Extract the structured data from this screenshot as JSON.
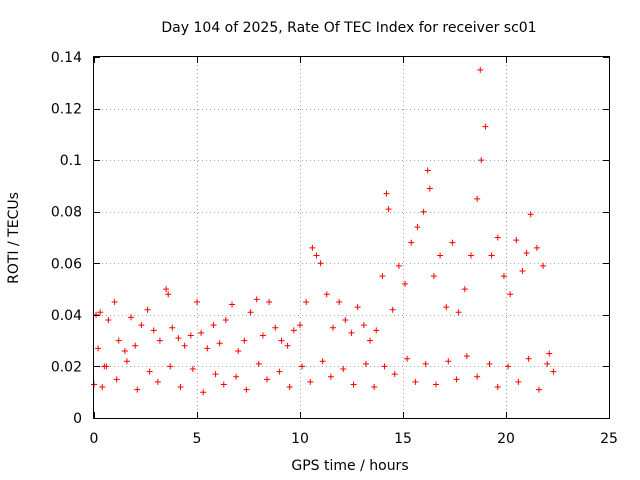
{
  "chart_data": {
    "type": "scatter",
    "title": "Day 104 of 2025, Rate Of TEC Index for receiver sc01",
    "xlabel": "GPS time / hours",
    "ylabel": "ROTI / TECUs",
    "xlim": [
      0,
      25
    ],
    "ylim": [
      0,
      0.14
    ],
    "xticks": [
      0,
      5,
      10,
      15,
      20,
      25
    ],
    "xtick_labels": [
      "0",
      "5",
      "10",
      "15",
      "20",
      "25"
    ],
    "yticks": [
      0,
      0.02,
      0.04,
      0.06,
      0.08,
      0.1,
      0.12,
      0.14
    ],
    "ytick_labels": [
      "0",
      "0.02",
      "0.04",
      "0.06",
      "0.08",
      "0.1",
      "0.12",
      "0.14"
    ],
    "grid": true,
    "marker": "+",
    "color": "#ff0000",
    "series": [
      {
        "x": [
          0.0,
          0.1,
          0.2,
          0.3,
          0.5,
          0.7,
          1.0,
          1.2,
          1.5,
          1.8,
          2.0,
          2.3,
          2.6,
          2.9,
          3.2,
          3.5,
          3.6,
          3.8,
          4.1,
          4.4,
          4.7,
          5.0,
          5.2,
          5.5,
          5.8,
          6.1,
          6.4,
          6.7,
          7.0,
          7.3,
          7.6,
          7.9,
          8.2,
          8.5,
          8.8,
          9.1,
          9.4,
          9.7,
          10.0,
          10.3,
          10.6,
          10.8,
          11.0,
          11.3,
          11.6,
          11.9,
          12.2,
          12.5,
          12.8,
          13.1,
          13.4,
          13.7,
          14.0,
          14.2,
          14.3,
          14.5,
          14.8,
          15.1,
          15.4,
          15.7,
          16.0,
          16.2,
          16.3,
          16.5,
          16.8,
          17.1,
          17.4,
          17.7,
          18.0,
          18.3,
          18.6,
          18.75,
          18.8,
          19.0,
          19.3,
          19.6,
          19.9,
          20.2,
          20.5,
          20.8,
          21.0,
          21.2,
          21.5,
          21.8,
          22.1,
          22.3,
          0.4,
          1.1,
          2.1,
          3.1,
          4.2,
          5.3,
          6.3,
          7.4,
          8.4,
          9.5,
          10.5,
          11.5,
          12.6,
          13.6,
          14.6,
          15.6,
          16.6,
          17.6,
          18.6,
          19.6,
          20.6,
          21.6,
          0.6,
          1.6,
          2.7,
          3.7,
          4.8,
          5.9,
          6.9,
          8.0,
          9.0,
          10.1,
          11.1,
          12.1,
          13.2,
          14.1,
          15.2,
          16.1,
          17.2,
          18.1,
          19.2,
          20.1,
          21.1,
          22.0
        ],
        "y": [
          0.013,
          0.04,
          0.027,
          0.041,
          0.02,
          0.038,
          0.045,
          0.03,
          0.026,
          0.039,
          0.028,
          0.036,
          0.042,
          0.034,
          0.03,
          0.05,
          0.048,
          0.035,
          0.031,
          0.028,
          0.032,
          0.045,
          0.033,
          0.027,
          0.036,
          0.029,
          0.038,
          0.044,
          0.026,
          0.03,
          0.041,
          0.046,
          0.032,
          0.045,
          0.035,
          0.03,
          0.028,
          0.034,
          0.036,
          0.045,
          0.066,
          0.063,
          0.06,
          0.048,
          0.035,
          0.045,
          0.038,
          0.033,
          0.043,
          0.036,
          0.03,
          0.034,
          0.055,
          0.087,
          0.081,
          0.042,
          0.059,
          0.052,
          0.068,
          0.074,
          0.08,
          0.096,
          0.089,
          0.055,
          0.063,
          0.043,
          0.068,
          0.041,
          0.05,
          0.063,
          0.085,
          0.135,
          0.1,
          0.113,
          0.063,
          0.07,
          0.055,
          0.048,
          0.069,
          0.057,
          0.064,
          0.079,
          0.066,
          0.059,
          0.025,
          0.018,
          0.012,
          0.015,
          0.011,
          0.014,
          0.012,
          0.01,
          0.013,
          0.011,
          0.015,
          0.012,
          0.014,
          0.016,
          0.013,
          0.012,
          0.017,
          0.014,
          0.013,
          0.015,
          0.016,
          0.012,
          0.014,
          0.011,
          0.02,
          0.022,
          0.018,
          0.02,
          0.019,
          0.017,
          0.016,
          0.021,
          0.018,
          0.02,
          0.022,
          0.019,
          0.021,
          0.02,
          0.023,
          0.021,
          0.022,
          0.024,
          0.021,
          0.02,
          0.023,
          0.021
        ]
      }
    ]
  }
}
